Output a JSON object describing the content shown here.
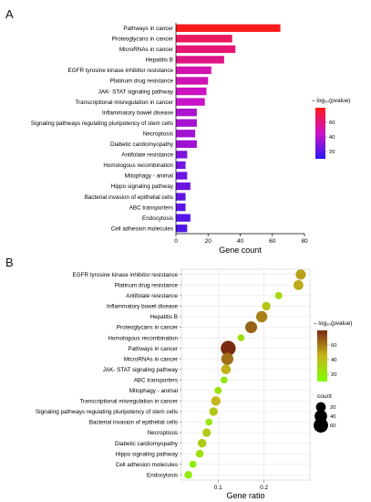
{
  "panels": {
    "a_label": "A",
    "b_label": "B"
  },
  "chart_data": [
    {
      "type": "bar",
      "orientation": "horizontal",
      "categories": [
        "Pathways in cancer",
        "Proteoglycans in cancer",
        "MicroRNAs in cancer",
        "Hepatitis B",
        "EGFR tyrosine kinase inhibitor resistance",
        "Platinum drug resistance",
        "JAK- STAT signaling pathway",
        "Transcriptional misregulation in cancer",
        "Inflammatory bowel disease",
        "Signaling pathways regulating pluripotency of stem cells",
        "Necroptosis",
        "Diabetic cardiomyopathy",
        "Antifolate resistance",
        "Homologous recombination",
        "Mitophagy -  animal",
        "Hippo signaling pathway",
        "Bacterial invasion of epithelial cells",
        "ABC transporters",
        "Endocytosis",
        "Cell adhesion molecules"
      ],
      "values": [
        65,
        35,
        37,
        30,
        22,
        20,
        19,
        18,
        13,
        13,
        12,
        13,
        7,
        6,
        7,
        9,
        6,
        6,
        9,
        7
      ],
      "neg_log10_pvalue": [
        80,
        66,
        62,
        58,
        50,
        48,
        46,
        44,
        38,
        37,
        36,
        35,
        28,
        26,
        24,
        24,
        22,
        21,
        19,
        18
      ],
      "xlabel": "Gene count",
      "xlim": [
        0,
        80
      ],
      "xticks": [
        0,
        20,
        40,
        60,
        80
      ],
      "grid": false,
      "colorbar": {
        "title": "– log₁₀(pvalue)",
        "ticks": [
          20,
          40,
          60
        ],
        "range": [
          10,
          80
        ],
        "colors": [
          "#2a17f5",
          "#cc12c6",
          "#ff1a1a"
        ]
      }
    },
    {
      "type": "scatter",
      "categories": [
        "EGFR tyrosine kinase inhibitor resistance",
        "Platinum drug resistance",
        "Antifolate resistance",
        "Inflammatory bowel disease",
        "Hepatitis B",
        "Proteoglycans in cancer",
        "Homologous recombination",
        "Pathways in cancer",
        "MicroRNAs in cancer",
        "JAK- STAT signaling pathway",
        "ABC transporters",
        "Mitophagy -  animal",
        "Transcriptional misregulation in cancer",
        "Signaling pathways regulating pluripotency of stem cells",
        "Bacterial invasion of epithelial cells",
        "Necroptosis",
        "Diabetic cardiomyopathy",
        "Hippo signaling pathway",
        "Cell adhesion molecules",
        "Endocytosis"
      ],
      "x": [
        0.28,
        0.275,
        0.232,
        0.205,
        0.195,
        0.172,
        0.15,
        0.122,
        0.12,
        0.117,
        0.113,
        0.1,
        0.095,
        0.09,
        0.08,
        0.075,
        0.065,
        0.06,
        0.045,
        0.035
      ],
      "count": [
        22,
        20,
        7,
        13,
        30,
        35,
        6,
        65,
        37,
        19,
        6,
        7,
        18,
        13,
        6,
        12,
        13,
        9,
        7,
        9
      ],
      "neg_log10_pvalue": [
        50,
        48,
        28,
        38,
        58,
        66,
        26,
        80,
        62,
        46,
        21,
        24,
        44,
        37,
        22,
        36,
        35,
        24,
        18,
        19
      ],
      "xlabel": "Gene ratio",
      "xlim": [
        0.02,
        0.3
      ],
      "xticks": [
        0.1,
        0.2
      ],
      "grid": true,
      "colorbar": {
        "title": "– log₁₀(pvalue)",
        "ticks": [
          20,
          40,
          60
        ],
        "range": [
          10,
          80
        ],
        "colors": [
          "#7fff00",
          "#c4b51b",
          "#7a2a10"
        ]
      },
      "size_legend": {
        "title": "count",
        "values": [
          20,
          40,
          60
        ]
      }
    }
  ]
}
